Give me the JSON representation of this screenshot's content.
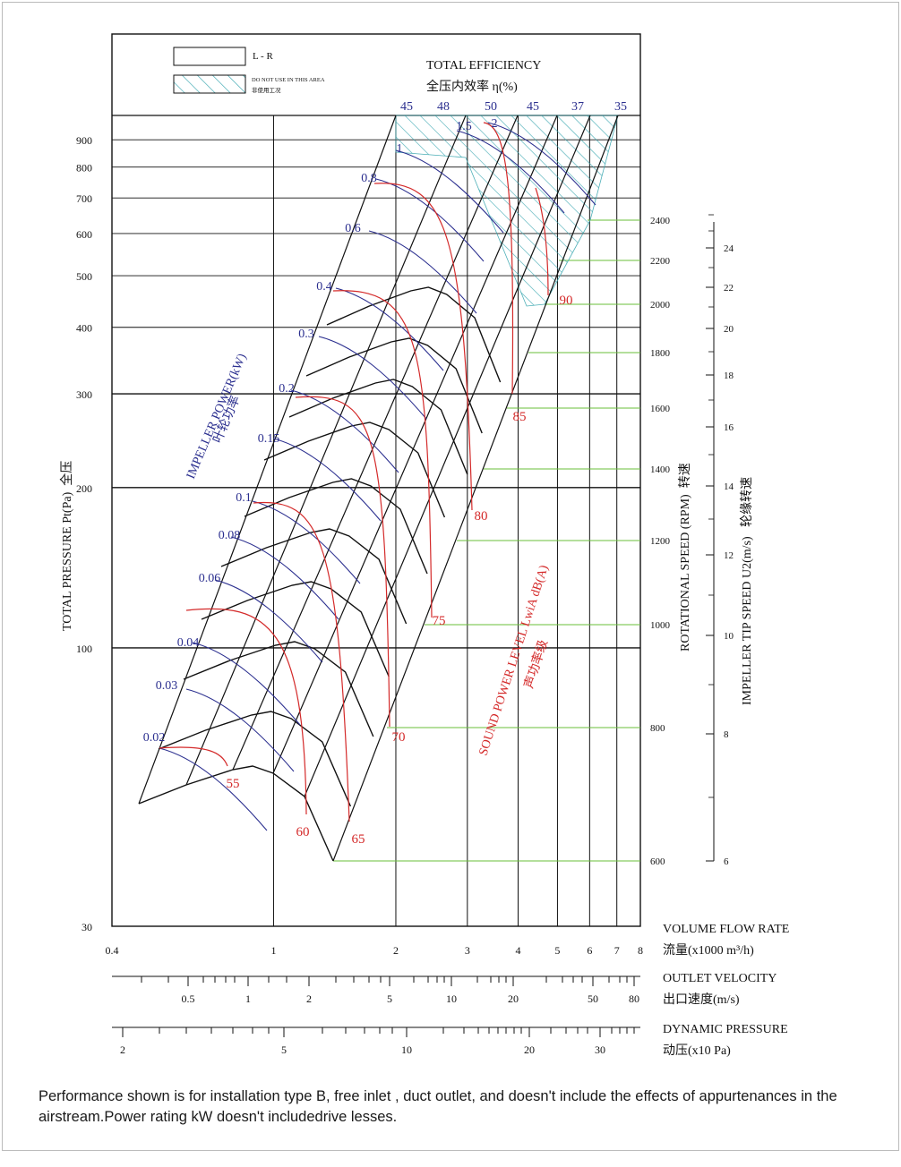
{
  "chart_data": {
    "type": "line",
    "title": "",
    "legend": {
      "items": [
        {
          "label": "L - R",
          "style": "box"
        },
        {
          "label": "DO NOT USE IN THIS AREA",
          "label_cn": "非使用工况",
          "style": "hatch"
        }
      ],
      "placement": "top-left"
    },
    "efficiency_title": "TOTAL EFFICIENCY",
    "efficiency_title_cn": "全压内效率  η(%)",
    "efficiency_labels": [
      "45",
      "48",
      "50",
      "45",
      "37",
      "35"
    ],
    "x_axes": [
      {
        "name": "volume_flow",
        "label": "VOLUME FLOW RATE",
        "label_cn": "流量(x1000 m³/h)",
        "scale": "log",
        "range": [
          0.4,
          8
        ],
        "ticks": [
          "0.4",
          "1",
          "2",
          "3",
          "4",
          "5",
          "6",
          "7",
          "8"
        ],
        "tick_values": [
          0.4,
          1,
          2,
          3,
          4,
          5,
          6,
          7,
          8
        ]
      },
      {
        "name": "outlet_velocity",
        "label": "OUTLET VELOCITY",
        "label_cn": "出口速度(m/s)",
        "ticks": [
          "0.5",
          "1",
          "2",
          "5",
          "10",
          "20",
          "50",
          "80"
        ]
      },
      {
        "name": "dynamic_pressure",
        "label": "DYNAMIC PRESSURE",
        "label_cn": "动压(x10 Pa)",
        "ticks": [
          "2",
          "5",
          "10",
          "20",
          "30"
        ]
      }
    ],
    "y_axis": {
      "label": "TOTAL PRESSURE Pt(Pa)",
      "label_cn": "全压",
      "scale": "log",
      "range": [
        30,
        1000
      ],
      "ticks": [
        "30",
        "100",
        "200",
        "300",
        "400",
        "500",
        "600",
        "700",
        "800",
        "900"
      ],
      "tick_values": [
        30,
        100,
        200,
        300,
        400,
        500,
        600,
        700,
        800,
        900
      ]
    },
    "rpm_axis": {
      "label": "ROTATIONAL SPEED (RPM)",
      "label_cn": "转速",
      "ticks": [
        "600",
        "800",
        "1000",
        "1200",
        "1400",
        "1600",
        "1800",
        "2000",
        "2200",
        "2400"
      ]
    },
    "tip_speed_axis": {
      "label": "IMPELLER TIP SPEED U2(m/s)",
      "label_cn": "轮缘转速",
      "ticks": [
        "6",
        "8",
        "10",
        "12",
        "14",
        "16",
        "18",
        "20",
        "22",
        "24"
      ]
    },
    "power_axis": {
      "label": "IMPELLER POWER(kW)",
      "label_cn": "叶轮功率",
      "labels": [
        "0.02",
        "0.03",
        "0.04",
        "0.06",
        "0.08",
        "0.1",
        "0.15",
        "0.2",
        "0.3",
        "0.4",
        "0.6",
        "0.8",
        "1",
        "1.5",
        "2"
      ]
    },
    "sound_axis": {
      "label": "SOUND POWER LEVEL LwiA dB(A)",
      "label_cn": "声功率级",
      "labels": [
        "55",
        "60",
        "65",
        "70",
        "75",
        "80",
        "85",
        "90"
      ]
    },
    "series": [
      {
        "name": "600",
        "unit": "RPM"
      },
      {
        "name": "800",
        "unit": "RPM"
      },
      {
        "name": "1000",
        "unit": "RPM"
      },
      {
        "name": "1200",
        "unit": "RPM"
      },
      {
        "name": "1400",
        "unit": "RPM"
      },
      {
        "name": "1600",
        "unit": "RPM"
      },
      {
        "name": "1800",
        "unit": "RPM"
      },
      {
        "name": "2000",
        "unit": "RPM"
      },
      {
        "name": "2200",
        "unit": "RPM"
      },
      {
        "name": "2400",
        "unit": "RPM"
      }
    ],
    "grid": true,
    "colors": {
      "axis": "#111111",
      "power": "#2b2f8f",
      "sound": "#d42a2a",
      "speed_ref": "#6abf3a",
      "hatch": "#3aa7b0"
    }
  },
  "footnote": "Performance shown is for installation type B, free inlet , duct outlet, and doesn't include the effects of appurtenances in the airstream.Power rating kW doesn't includedrive lesses."
}
